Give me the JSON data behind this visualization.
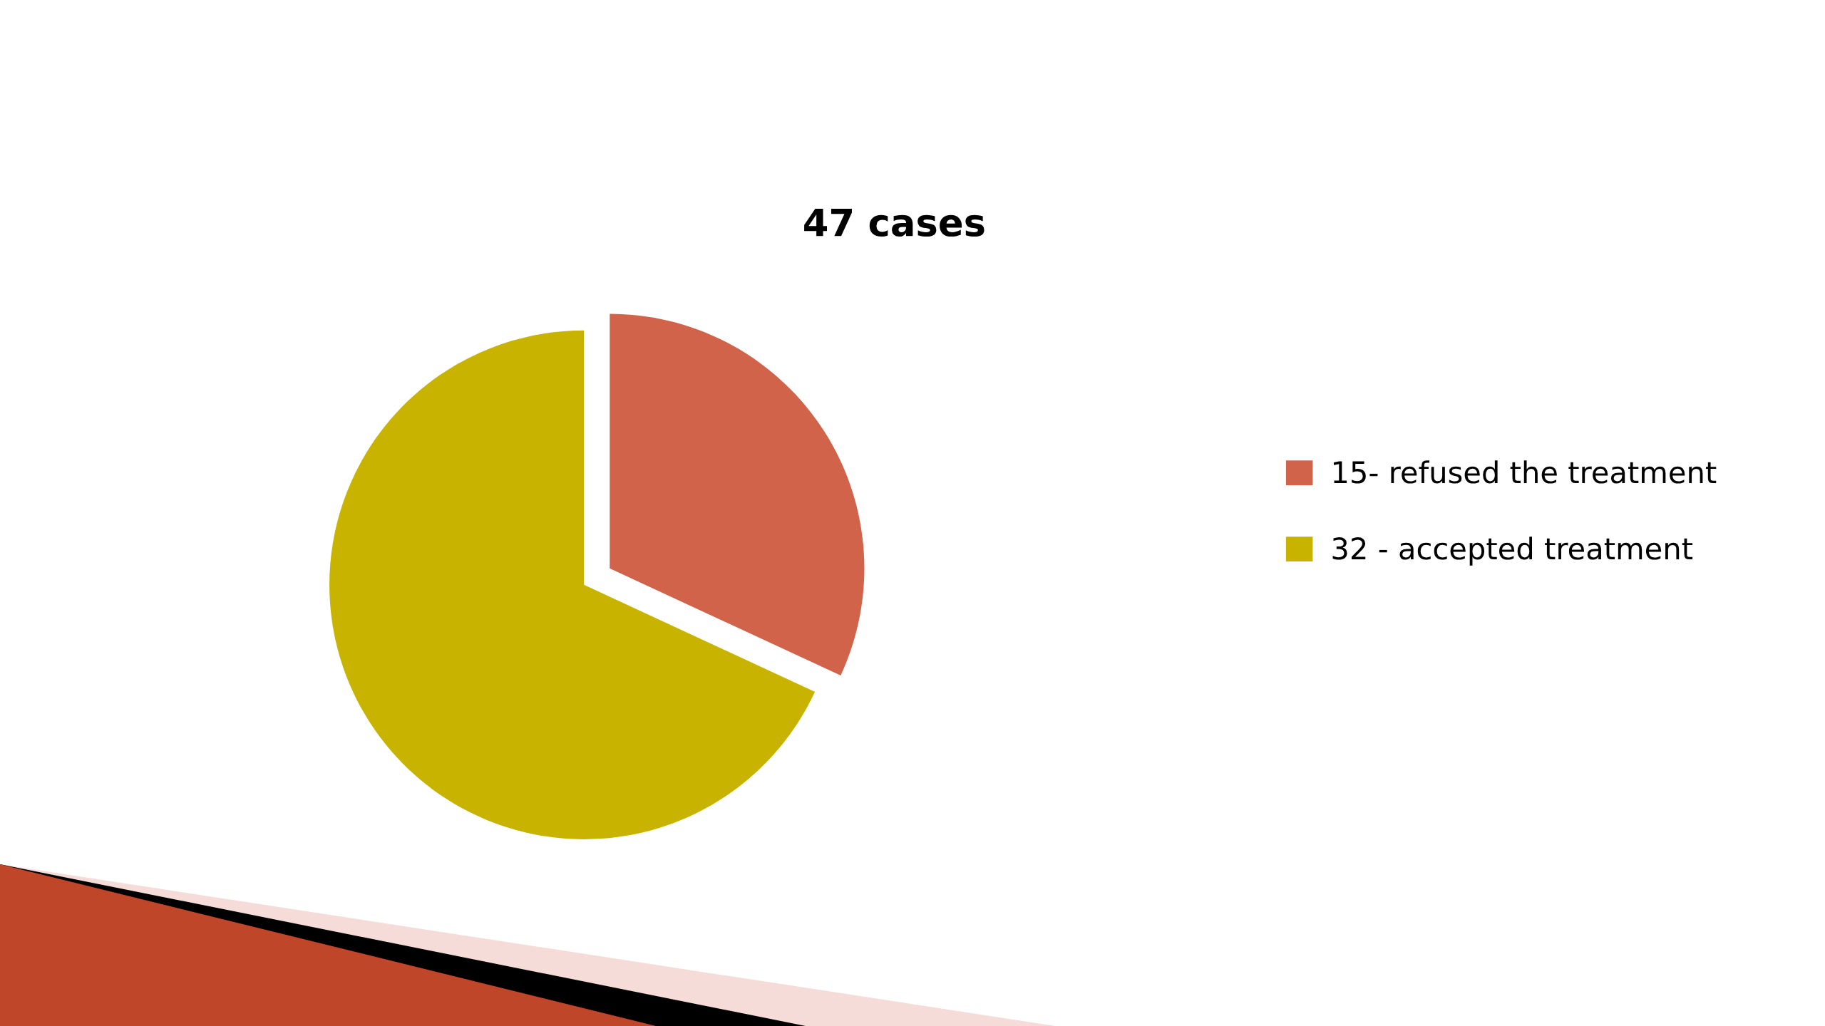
{
  "chart_data": {
    "type": "pie",
    "title": "47 cases",
    "categories": [
      "15- refused the treatment",
      "32 - accepted treatment"
    ],
    "values": [
      15,
      32
    ],
    "colors": [
      "#d0634a",
      "#c8b400"
    ],
    "legend": "right"
  }
}
